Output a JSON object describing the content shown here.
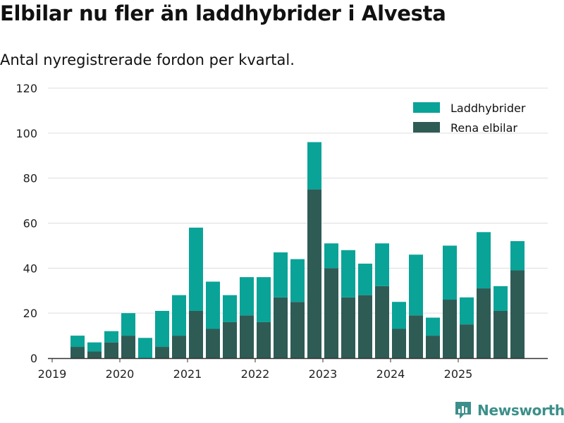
{
  "header": {
    "title": "Elbilar nu fler än laddhybrider i Alvesta",
    "subtitle": "Antal nyregistrerade fordon per kvartal."
  },
  "brand": {
    "name": "Newsworthy",
    "icon": "newsworthy-logo-icon"
  },
  "colors": {
    "laddhybrider": "#0aa398",
    "elbilar": "#2f5b55",
    "grid": "#dddddd",
    "axis": "#333333"
  },
  "chart_data": {
    "type": "bar",
    "stacked": true,
    "title": "Elbilar nu fler än laddhybrider i Alvesta",
    "subtitle": "Antal nyregistrerade fordon per kvartal.",
    "xlabel": "",
    "ylabel": "",
    "ylim": [
      0,
      120
    ],
    "yticks": [
      0,
      20,
      40,
      60,
      80,
      100,
      120
    ],
    "x_tick_labels": [
      "2019",
      "2020",
      "2021",
      "2022",
      "2023",
      "2024",
      "2025"
    ],
    "categories": [
      "2019 Q2",
      "2019 Q3",
      "2019 Q4",
      "2020 Q1",
      "2020 Q2",
      "2020 Q3",
      "2020 Q4",
      "2021 Q1",
      "2021 Q2",
      "2021 Q3",
      "2021 Q4",
      "2022 Q1",
      "2022 Q2",
      "2022 Q3",
      "2022 Q4",
      "2023 Q1",
      "2023 Q2",
      "2023 Q3",
      "2023 Q4",
      "2024 Q1",
      "2024 Q2",
      "2024 Q3",
      "2024 Q4",
      "2025 Q1",
      "2025 Q2",
      "2025 Q3",
      "2025 Q4"
    ],
    "legend_position": "top-right",
    "series": [
      {
        "name": "Rena elbilar",
        "values": [
          5,
          3,
          7,
          10,
          0,
          5,
          10,
          21,
          13,
          16,
          19,
          16,
          27,
          25,
          75,
          40,
          27,
          28,
          32,
          13,
          19,
          10,
          26,
          15,
          31,
          21,
          39
        ]
      },
      {
        "name": "Laddhybrider",
        "values": [
          5,
          4,
          5,
          10,
          9,
          16,
          18,
          37,
          21,
          12,
          17,
          20,
          20,
          19,
          21,
          11,
          21,
          14,
          19,
          12,
          27,
          8,
          24,
          12,
          25,
          11,
          13
        ]
      }
    ],
    "legend": [
      "Laddhybrider",
      "Rena elbilar"
    ]
  }
}
